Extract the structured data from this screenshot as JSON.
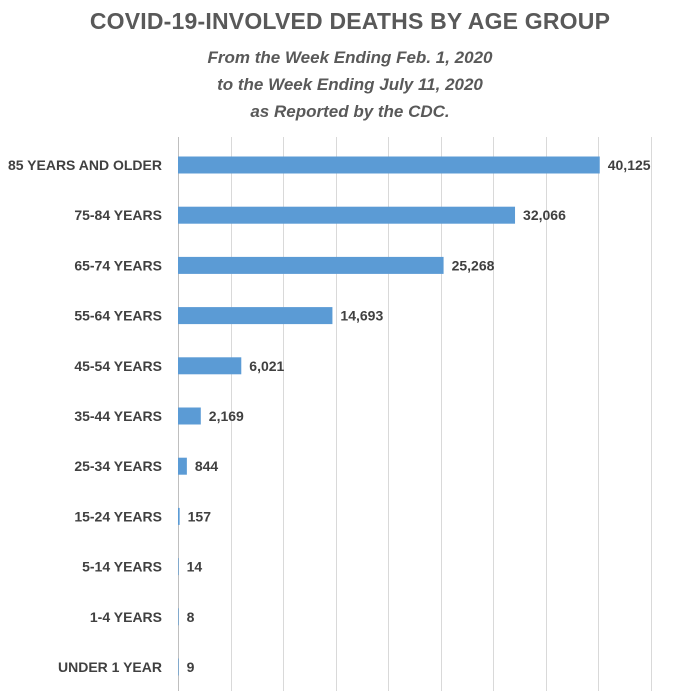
{
  "chart_data": {
    "type": "bar",
    "orientation": "horizontal",
    "title": "COVID-19-INVOLVED DEATHS BY AGE GROUP",
    "subtitle": [
      "From the Week  Ending Feb. 1, 2020",
      "to the Week Ending July 11, 2020",
      "as Reported by the CDC."
    ],
    "categories": [
      "85 YEARS AND OLDER",
      "75-84 YEARS",
      "65-74 YEARS",
      "55-64 YEARS",
      "45-54 YEARS",
      "35-44 YEARS",
      "25-34 YEARS",
      "15-24 YEARS",
      "5-14 YEARS",
      "1-4 YEARS",
      "UNDER 1 YEAR"
    ],
    "values": [
      40125,
      32066,
      25268,
      14693,
      6021,
      2169,
      844,
      157,
      14,
      8,
      9
    ],
    "value_labels": [
      "40,125",
      "32,066",
      "25,268",
      "14,693",
      "6,021",
      "2,169",
      "844",
      "157",
      "14",
      "8",
      "9"
    ],
    "xlim": [
      0,
      47000
    ],
    "grid": true,
    "gridline_interval": 5000,
    "legend": "none",
    "colors": {
      "bar": "#5B9BD5",
      "gridline": "#D9D9D9",
      "text": "#404040",
      "title": "#595959"
    }
  }
}
